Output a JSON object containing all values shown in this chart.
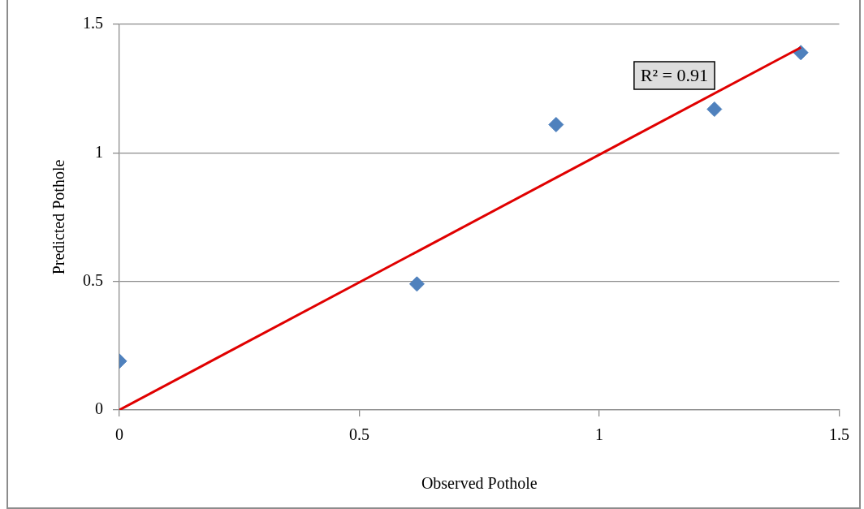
{
  "chart_data": {
    "type": "scatter",
    "xlabel": "Observed Pothole",
    "ylabel": "Predicted Pothole",
    "xlim": [
      0,
      1.5
    ],
    "xticks": [
      0,
      0.5,
      1,
      1.5
    ],
    "ylim": [
      0,
      1.5
    ],
    "yticks": [
      0,
      0.5,
      1,
      1.5
    ],
    "grid": "y",
    "legend": false,
    "marker": "diamond",
    "series": [
      {
        "type": "scatter",
        "color": "#4f81bd",
        "x": [
          0,
          0.62,
          0.91,
          1.24,
          1.42
        ],
        "values": [
          0.19,
          0.49,
          1.11,
          1.17,
          1.39
        ]
      },
      {
        "type": "line",
        "color": "#e00000",
        "x": [
          0,
          1.42
        ],
        "values": [
          0,
          1.41
        ],
        "marker": "none",
        "line_style": "solid"
      }
    ],
    "annotations": [
      "R² = 0.91"
    ]
  }
}
